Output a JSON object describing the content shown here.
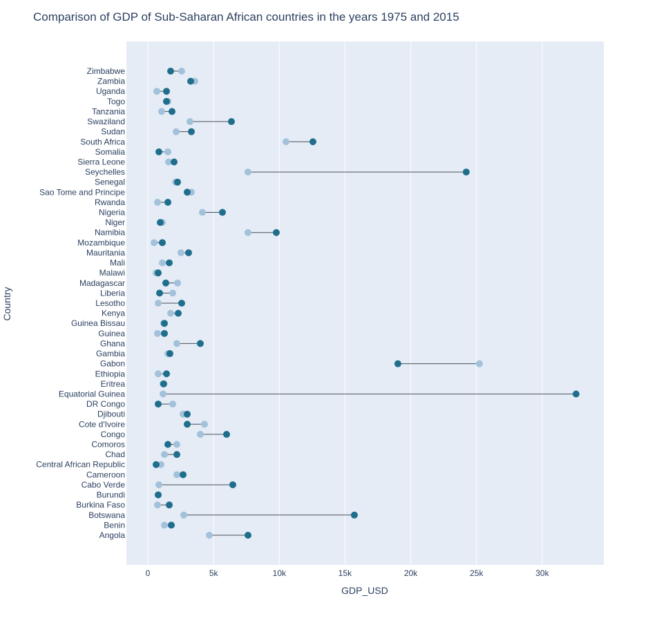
{
  "chart_data": {
    "type": "dumbbell",
    "title": "Comparison of GDP of Sub-Saharan African countries in the years 1975 and 2015",
    "x_label": "GDP_USD",
    "y_label": "Country",
    "categories": [
      "Angola",
      "Benin",
      "Botswana",
      "Burkina Faso",
      "Burundi",
      "Cabo Verde",
      "Cameroon",
      "Central African Republic",
      "Chad",
      "Comoros",
      "Congo",
      "Cote d'Ivoire",
      "Djibouti",
      "DR Congo",
      "Equatorial Guinea",
      "Eritrea",
      "Ethiopia",
      "Gabon",
      "Gambia",
      "Ghana",
      "Guinea",
      "Guinea Bissau",
      "Kenya",
      "Lesotho",
      "Liberia",
      "Madagascar",
      "Malawi",
      "Mali",
      "Mauritania",
      "Mozambique",
      "Namibia",
      "Niger",
      "Nigeria",
      "Rwanda",
      "Sao Tome and Principe",
      "Senegal",
      "Seychelles",
      "Sierra Leone",
      "Somalia",
      "South Africa",
      "Sudan",
      "Swaziland",
      "Tanzania",
      "Togo",
      "Uganda",
      "Zambia",
      "Zimbabwe"
    ],
    "series": [
      {
        "color": "#a3c1da",
        "values": [
          4676,
          1261,
          2732,
          736,
          788,
          841,
          2207,
          998,
          1261,
          2207,
          3993,
          4308,
          2680,
          1891,
          1156,
          1156,
          788,
          25219,
          1524,
          2207,
          736,
          1208,
          1734,
          788,
          1891,
          2259,
          630,
          1103,
          2522,
          473,
          7618,
          1103,
          4150,
          736,
          3310,
          2102,
          7618,
          1576,
          1524,
          10508,
          2154,
          3205,
          1051,
          1524,
          683,
          3573,
          2574
        ]
      },
      {
        "color": "#1f6e8c",
        "values": [
          7618,
          1786,
          15710,
          1629,
          788,
          6462,
          2680,
          630,
          2207,
          1524,
          5990,
          2995,
          2995,
          788,
          32575,
          1208,
          1419,
          19019,
          1681,
          3993,
          1261,
          1261,
          2312,
          2574,
          893,
          1366,
          788,
          1629,
          3100,
          1103,
          9772,
          946,
          5674,
          1524,
          2995,
          2259,
          24220,
          1997,
          841,
          12557,
          3310,
          6357,
          1839,
          1419,
          1419,
          3257,
          1734
        ]
      }
    ],
    "connector_color": "#4a4f58",
    "xlim": [
      -1630,
      34680
    ],
    "xticks": [
      0,
      {
        "value": 5000,
        "label": "5k"
      },
      {
        "value": 10000,
        "label": "10k"
      },
      {
        "value": 15000,
        "label": "15k"
      },
      {
        "value": 20000,
        "label": "20k"
      },
      {
        "value": 25000,
        "label": "25k"
      },
      {
        "value": 30000,
        "label": "30k"
      }
    ],
    "grid": true
  }
}
